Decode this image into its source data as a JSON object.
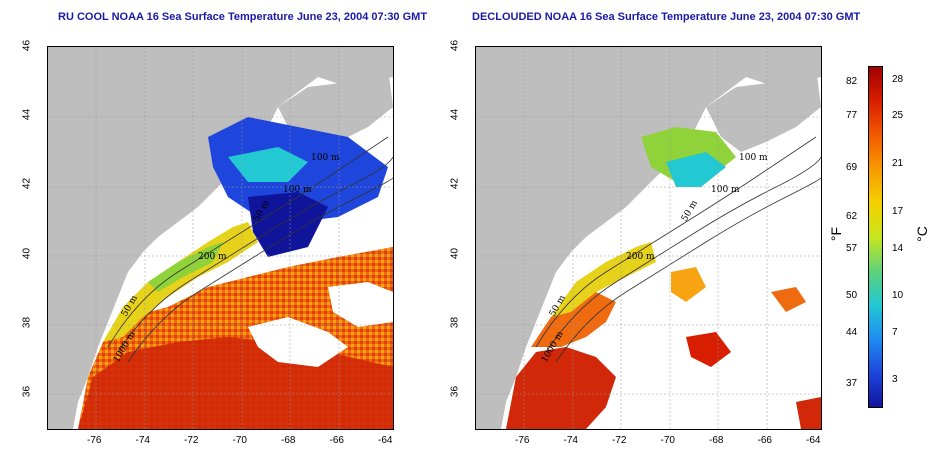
{
  "titles": {
    "left": "RU COOL NOAA 16 Sea Surface Temperature June 23, 2004 07:30 GMT",
    "right": "DECLOUDED NOAA 16 Sea Surface Temperature June 23, 2004 07:30 GMT"
  },
  "axes": {
    "x_ticks": [
      "-76",
      "-74",
      "-72",
      "-70",
      "-68",
      "-66",
      "-64"
    ],
    "y_ticks": [
      "46",
      "44",
      "42",
      "40",
      "38",
      "36"
    ]
  },
  "contours": {
    "left": [
      "100 m",
      "100 m",
      "50 m",
      "200 m",
      "50 m",
      "1000 m"
    ],
    "right": [
      "100 m",
      "100 m",
      "50 m",
      "200 m",
      "50 m",
      "1000 m"
    ]
  },
  "colorbar": {
    "fahrenheit_ticks": [
      "82",
      "77",
      "69",
      "62",
      "57",
      "50",
      "44",
      "37"
    ],
    "celsius_ticks": [
      "28",
      "25",
      "21",
      "17",
      "14",
      "10",
      "7",
      "3"
    ],
    "f_unit": "°F",
    "c_unit": "°C",
    "colors": [
      "#a00000",
      "#d81e00",
      "#f25a00",
      "#f79a00",
      "#f4d000",
      "#c8e61e",
      "#5fd27a",
      "#22c8d2",
      "#1e8cf0",
      "#1e46dc",
      "#10149a"
    ]
  }
}
